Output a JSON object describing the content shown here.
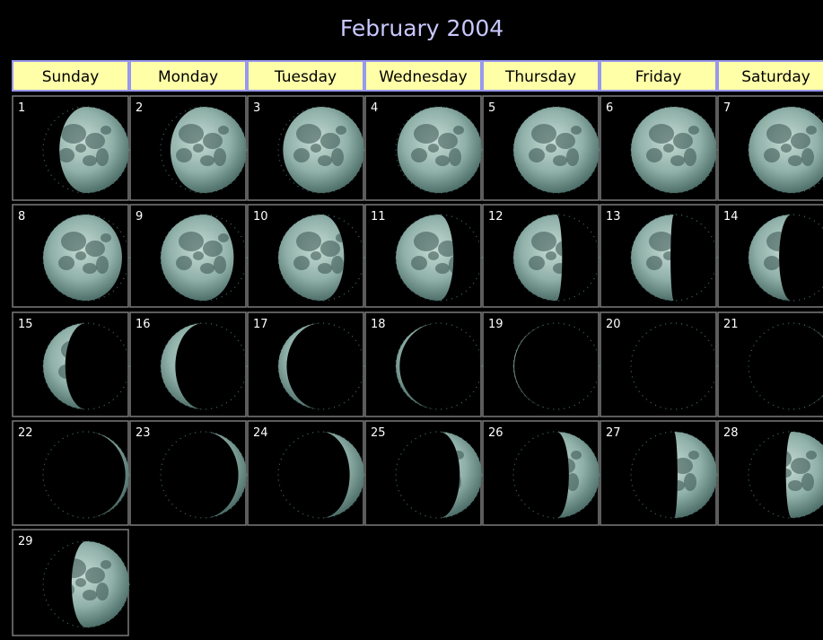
{
  "title": "February 2004",
  "weekdays": [
    "Sunday",
    "Monday",
    "Tuesday",
    "Wednesday",
    "Thursday",
    "Friday",
    "Saturday"
  ],
  "days": [
    1,
    2,
    3,
    4,
    5,
    6,
    7,
    8,
    9,
    10,
    11,
    12,
    13,
    14,
    15,
    16,
    17,
    18,
    19,
    20,
    21,
    22,
    23,
    24,
    25,
    26,
    27,
    28,
    29
  ]
}
